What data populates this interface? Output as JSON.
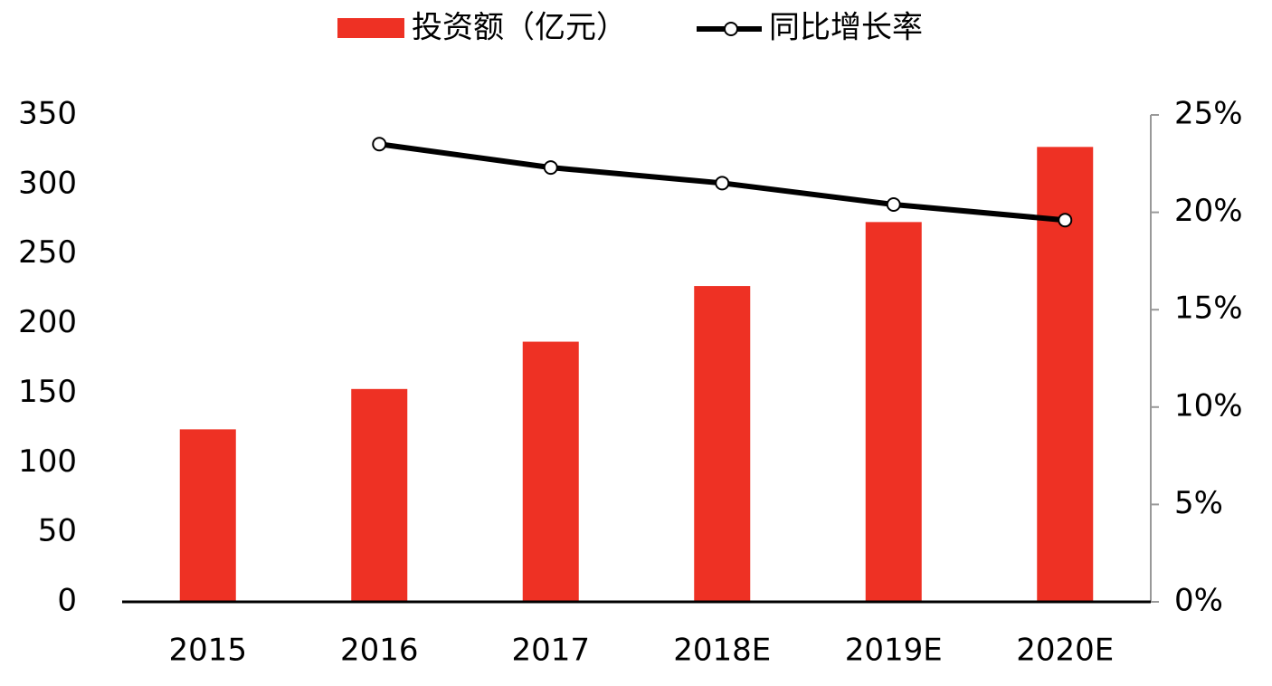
{
  "chart_data": {
    "type": "bar-line",
    "categories": [
      "2015",
      "2016",
      "2017",
      "2018E",
      "2019E",
      "2020E"
    ],
    "series": [
      {
        "name": "投资额（亿元）",
        "type": "bar",
        "color": "#ee3124",
        "values": [
          124,
          153,
          187,
          227,
          273,
          327
        ]
      },
      {
        "name": "同比增长率",
        "type": "line",
        "axis": "y2",
        "color": "#000000",
        "values": [
          null,
          23.5,
          22.3,
          21.5,
          20.4,
          19.6
        ]
      }
    ],
    "ylim": [
      0,
      350
    ],
    "yticks": [
      0,
      50,
      100,
      150,
      200,
      250,
      300,
      350
    ],
    "y2lim": [
      0,
      25
    ],
    "y2ticks": [
      {
        "value": 0,
        "label": "0%"
      },
      {
        "value": 5,
        "label": "5%"
      },
      {
        "value": 10,
        "label": "10%"
      },
      {
        "value": 15,
        "label": "15%"
      },
      {
        "value": 20,
        "label": "20%"
      },
      {
        "value": 25,
        "label": "25%"
      }
    ],
    "legend": "top"
  }
}
